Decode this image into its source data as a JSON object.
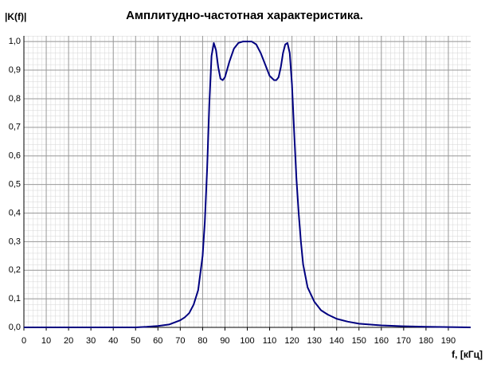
{
  "chart_data": {
    "type": "line",
    "title": "Амплитудно-частотная характеристика.",
    "y_label": "|K(f)|",
    "x_label": "f, [кГц]",
    "x": [
      0,
      50,
      55,
      60,
      65,
      70,
      72,
      74,
      76,
      78,
      80,
      81,
      82,
      83,
      84,
      85,
      86,
      87,
      88,
      89,
      90,
      92,
      94,
      96,
      98,
      100,
      102,
      104,
      106,
      108,
      110,
      112,
      113,
      114,
      115,
      116,
      117,
      118,
      119,
      120,
      121,
      122,
      123,
      124,
      125,
      127,
      130,
      133,
      136,
      140,
      145,
      150,
      160,
      170,
      180,
      190,
      200
    ],
    "series": [
      {
        "name": "|K(f)|",
        "color": "#000080",
        "values": [
          0,
          0,
          0.002,
          0.005,
          0.01,
          0.025,
          0.035,
          0.05,
          0.08,
          0.13,
          0.25,
          0.37,
          0.55,
          0.78,
          0.95,
          0.995,
          0.97,
          0.91,
          0.87,
          0.865,
          0.875,
          0.93,
          0.975,
          0.995,
          1.0,
          1.0,
          1.0,
          0.99,
          0.96,
          0.92,
          0.88,
          0.865,
          0.865,
          0.875,
          0.91,
          0.96,
          0.99,
          0.995,
          0.96,
          0.85,
          0.68,
          0.52,
          0.4,
          0.3,
          0.22,
          0.14,
          0.09,
          0.06,
          0.045,
          0.03,
          0.02,
          0.013,
          0.007,
          0.004,
          0.002,
          0.001,
          0
        ]
      }
    ],
    "xlim": [
      0,
      200
    ],
    "ylim": [
      0,
      1.02
    ],
    "xticks": [
      0,
      10,
      20,
      30,
      40,
      50,
      60,
      70,
      80,
      90,
      100,
      110,
      120,
      130,
      140,
      150,
      160,
      170,
      180,
      190
    ],
    "yticks": [
      {
        "value": 0,
        "label": "0,0"
      },
      {
        "value": 0.1,
        "label": "0,1"
      },
      {
        "value": 0.2,
        "label": "0,2"
      },
      {
        "value": 0.3,
        "label": "0,3"
      },
      {
        "value": 0.4,
        "label": "0,4"
      },
      {
        "value": 0.5,
        "label": "0,5"
      },
      {
        "value": 0.6,
        "label": "0,6"
      },
      {
        "value": 0.7,
        "label": "0,7"
      },
      {
        "value": 0.8,
        "label": "0,8"
      },
      {
        "value": 0.9,
        "label": "0,9"
      },
      {
        "value": 1.0,
        "label": "1,0"
      }
    ],
    "grid": true
  }
}
